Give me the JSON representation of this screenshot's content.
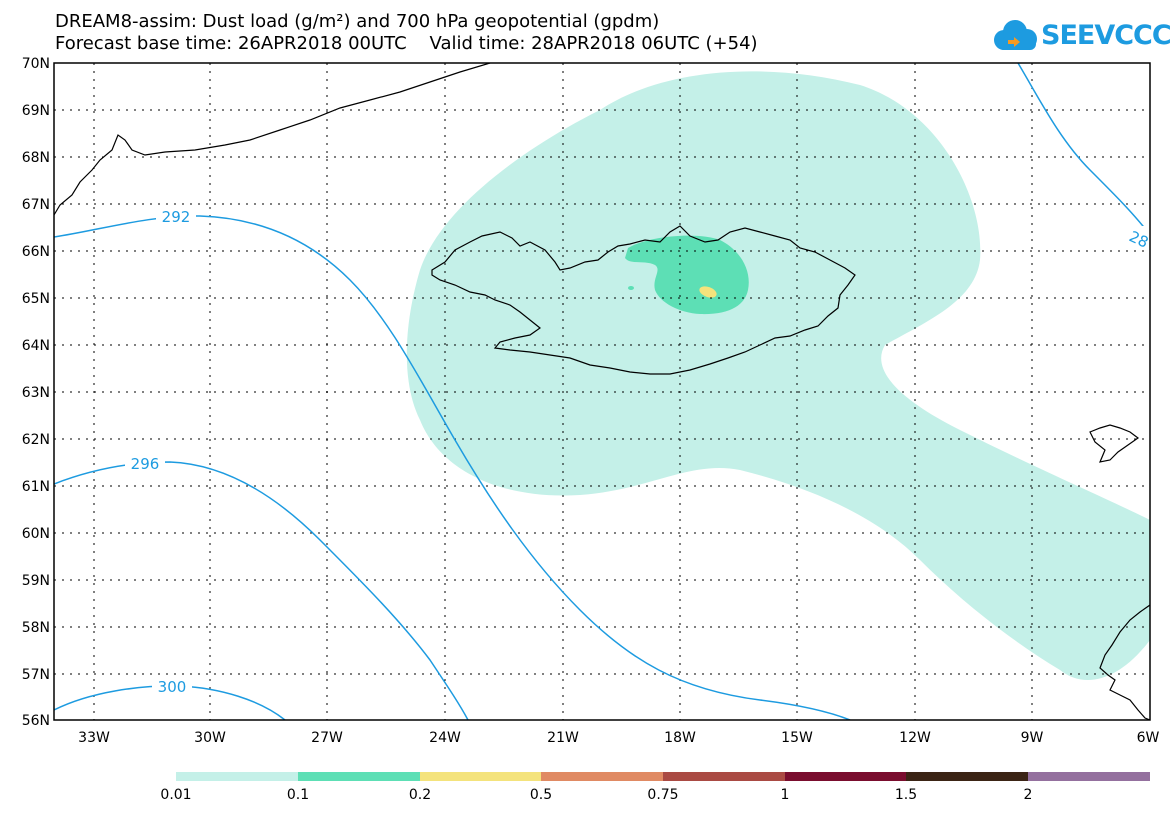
{
  "title": {
    "line1": "DREAM8-assim: Dust load (g/m²) and 700 hPa geopotential (gpdm)",
    "line2": "Forecast base time: 26APR2018 00UTC    Valid time: 28APR2018 06UTC (+54)"
  },
  "logo": {
    "text": "SEEVCCC"
  },
  "map": {
    "lat_labels": [
      "70N",
      "69N",
      "68N",
      "67N",
      "66N",
      "65N",
      "64N",
      "63N",
      "62N",
      "61N",
      "60N",
      "59N",
      "58N",
      "57N",
      "56N"
    ],
    "lon_labels": [
      "33W",
      "30W",
      "27W",
      "24W",
      "21W",
      "18W",
      "15W",
      "12W",
      "9W",
      "6W"
    ],
    "contour_labels": [
      "292",
      "296",
      "300",
      "28"
    ],
    "colors": {
      "geopotential": "#1d9be0",
      "coast": "#000000"
    }
  },
  "colorbar": {
    "labels": [
      "0.01",
      "0.1",
      "0.2",
      "0.5",
      "0.75",
      "1",
      "1.5",
      "2"
    ],
    "colors": [
      "#c4f0e8",
      "#5ddfb5",
      "#f4e37c",
      "#e08a63",
      "#aa4a43",
      "#7a0d2e",
      "#3b2415",
      "#94709e"
    ]
  }
}
